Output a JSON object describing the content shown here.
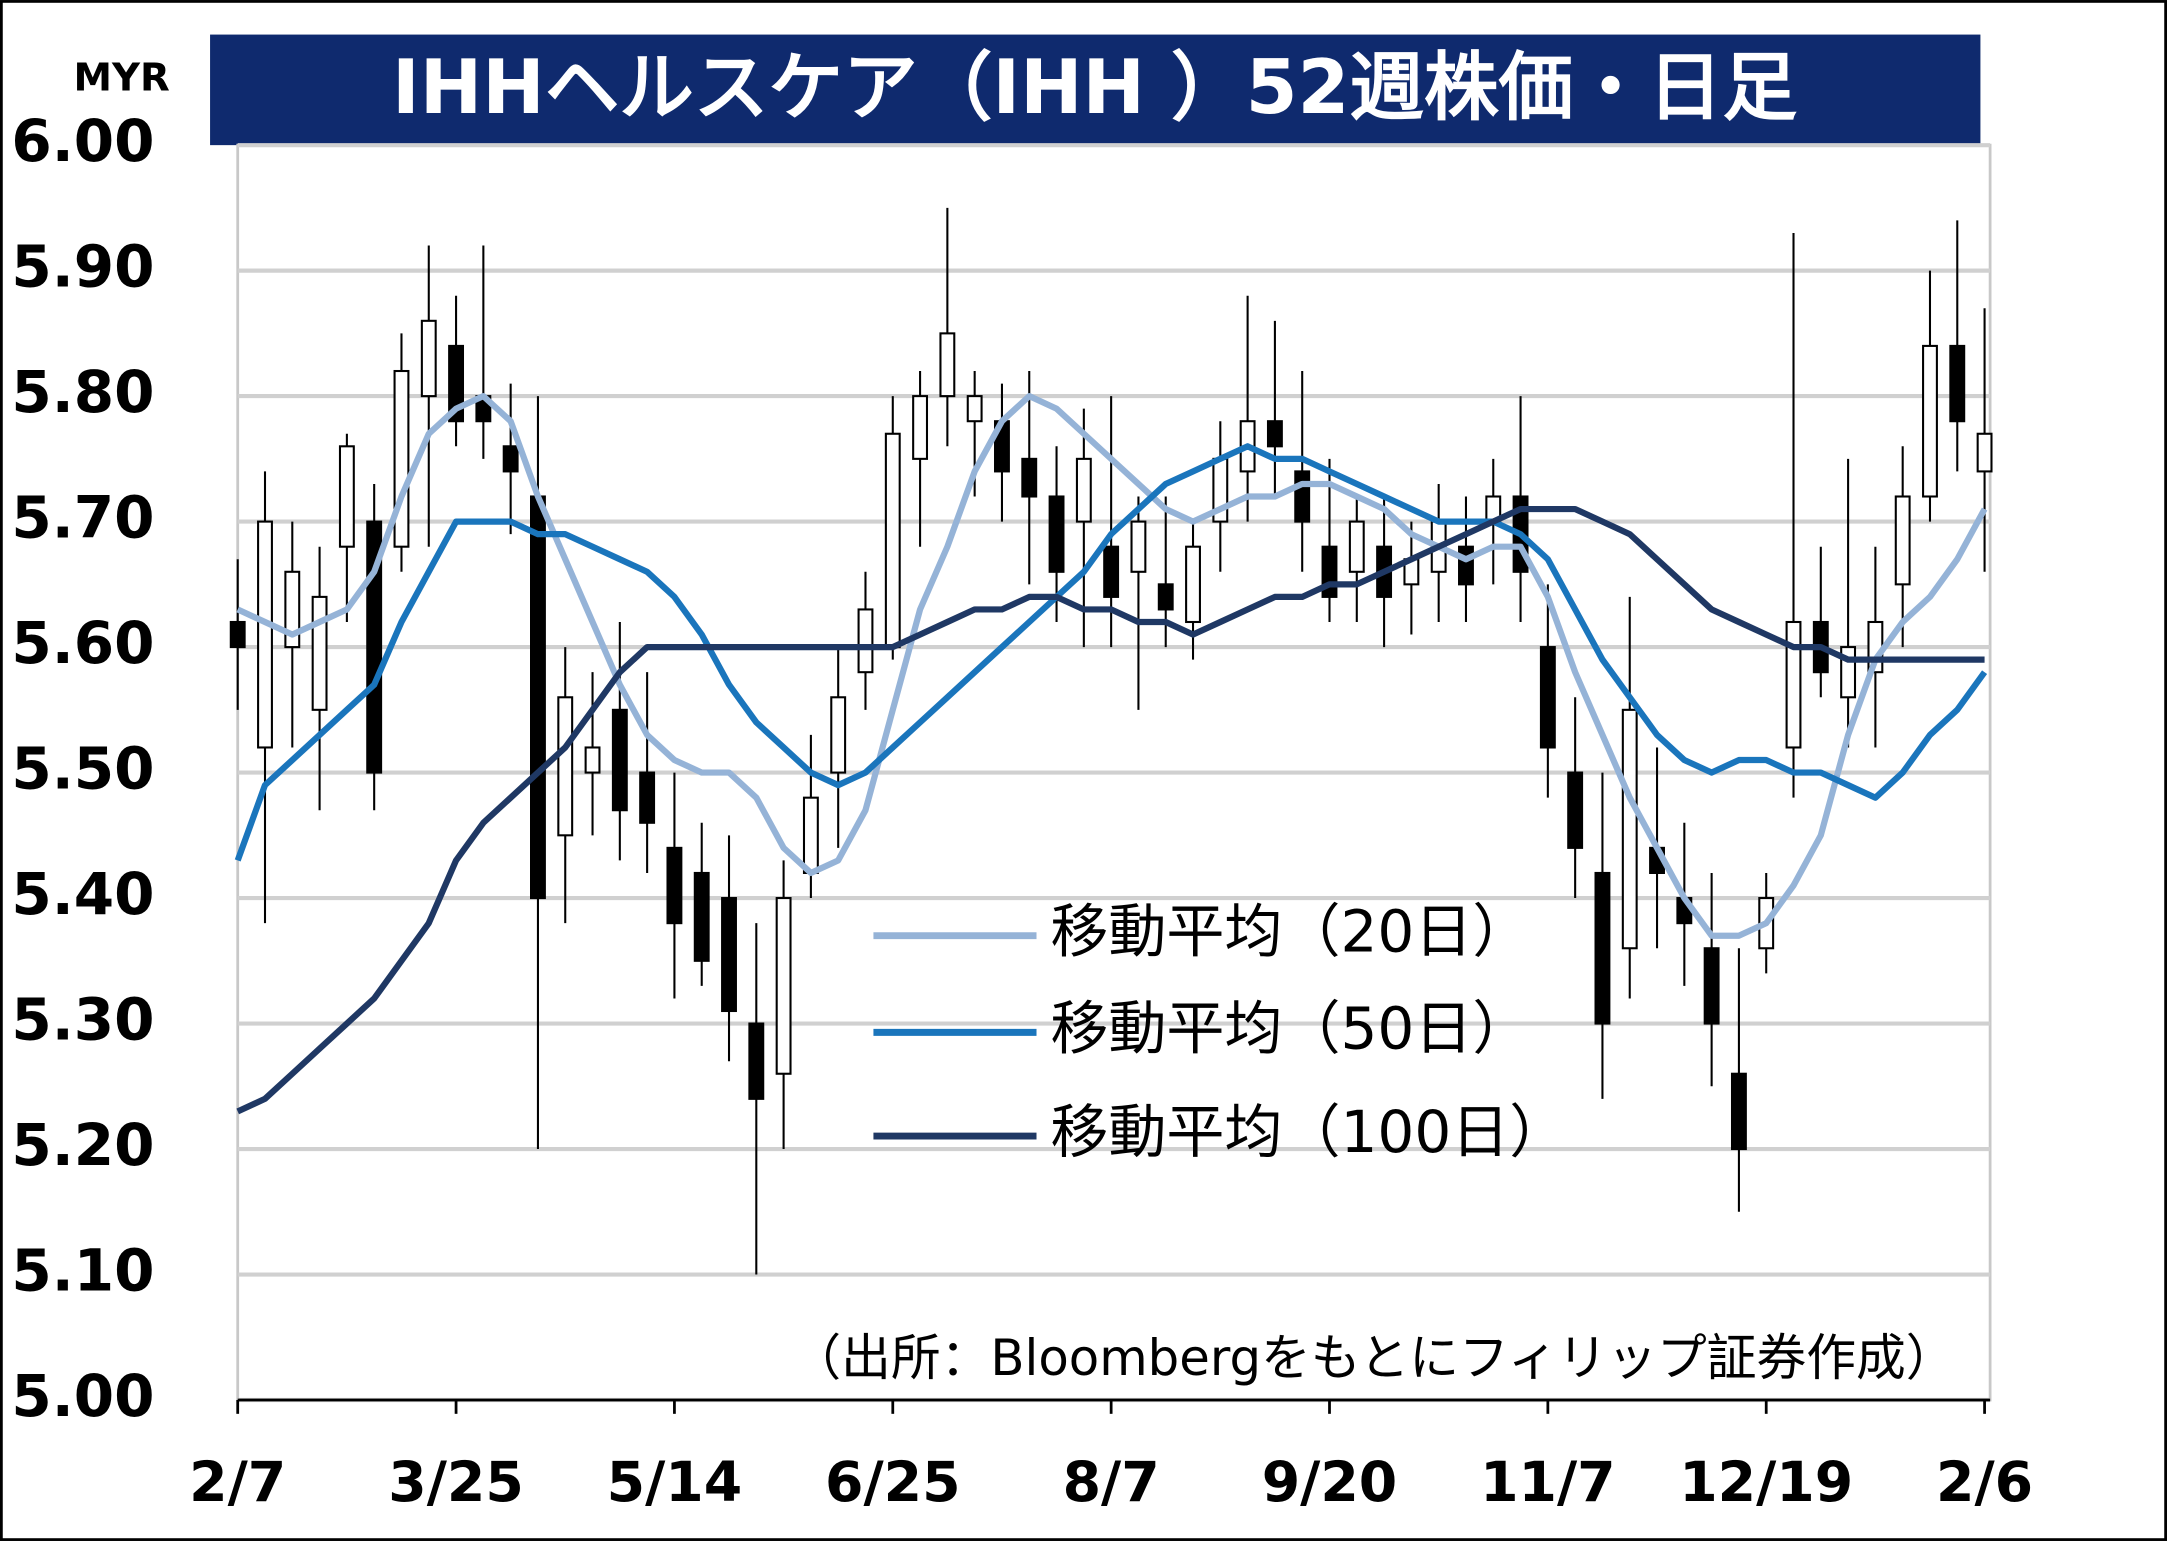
{
  "chart_data": {
    "type": "candlestick",
    "title": "IHHヘルスケア（IHH ）52週株価・日足",
    "y_unit": "MYR",
    "source": "（出所：Bloombergをもとにフィリップ証券作成）",
    "categories": [
      "2/7",
      null,
      null,
      null,
      null,
      null,
      null,
      null,
      "3/25",
      null,
      null,
      null,
      null,
      null,
      null,
      null,
      "5/14",
      null,
      null,
      null,
      null,
      null,
      null,
      null,
      "6/25",
      null,
      null,
      null,
      null,
      null,
      null,
      null,
      "8/7",
      null,
      null,
      null,
      null,
      null,
      null,
      null,
      "9/20",
      null,
      null,
      null,
      null,
      null,
      null,
      null,
      "11/7",
      null,
      null,
      null,
      null,
      null,
      null,
      null,
      "12/19",
      null,
      null,
      null,
      null,
      null,
      null,
      null,
      "2/6"
    ],
    "open": [
      5.62,
      5.52,
      5.6,
      5.55,
      5.68,
      5.7,
      5.68,
      5.8,
      5.84,
      5.8,
      5.76,
      5.72,
      5.45,
      5.5,
      5.55,
      5.5,
      5.44,
      5.42,
      5.4,
      5.3,
      5.26,
      5.42,
      5.5,
      5.58,
      5.6,
      5.75,
      5.8,
      5.78,
      5.78,
      5.75,
      5.72,
      5.7,
      5.68,
      5.66,
      5.65,
      5.62,
      5.7,
      5.74,
      5.78,
      5.74,
      5.68,
      5.66,
      5.68,
      5.65,
      5.66,
      5.68,
      5.7,
      5.72,
      5.6,
      5.5,
      5.42,
      5.36,
      5.44,
      5.4,
      5.36,
      5.26,
      5.36,
      5.52,
      5.62,
      5.56,
      5.58,
      5.65,
      5.72,
      5.84,
      5.74
    ],
    "high": [
      5.67,
      5.74,
      5.7,
      5.68,
      5.77,
      5.73,
      5.85,
      5.92,
      5.88,
      5.92,
      5.81,
      5.8,
      5.6,
      5.58,
      5.62,
      5.58,
      5.5,
      5.46,
      5.45,
      5.38,
      5.43,
      5.53,
      5.6,
      5.66,
      5.8,
      5.82,
      5.95,
      5.82,
      5.81,
      5.82,
      5.76,
      5.79,
      5.8,
      5.72,
      5.72,
      5.7,
      5.78,
      5.88,
      5.86,
      5.82,
      5.75,
      5.72,
      5.72,
      5.7,
      5.73,
      5.72,
      5.75,
      5.8,
      5.65,
      5.56,
      5.5,
      5.64,
      5.52,
      5.46,
      5.42,
      5.36,
      5.42,
      5.93,
      5.68,
      5.75,
      5.68,
      5.76,
      5.9,
      5.94,
      5.87
    ],
    "low": [
      5.55,
      5.38,
      5.52,
      5.47,
      5.62,
      5.47,
      5.66,
      5.68,
      5.76,
      5.75,
      5.69,
      5.2,
      5.38,
      5.45,
      5.43,
      5.42,
      5.32,
      5.33,
      5.27,
      5.1,
      5.2,
      5.4,
      5.44,
      5.55,
      5.59,
      5.68,
      5.76,
      5.72,
      5.7,
      5.65,
      5.62,
      5.6,
      5.6,
      5.55,
      5.6,
      5.59,
      5.66,
      5.7,
      5.72,
      5.66,
      5.62,
      5.62,
      5.6,
      5.61,
      5.62,
      5.62,
      5.65,
      5.62,
      5.48,
      5.4,
      5.24,
      5.32,
      5.36,
      5.33,
      5.25,
      5.15,
      5.34,
      5.48,
      5.56,
      5.52,
      5.52,
      5.6,
      5.7,
      5.74,
      5.66
    ],
    "close": [
      5.6,
      5.7,
      5.66,
      5.64,
      5.76,
      5.5,
      5.82,
      5.86,
      5.78,
      5.78,
      5.74,
      5.4,
      5.56,
      5.52,
      5.47,
      5.46,
      5.38,
      5.35,
      5.31,
      5.24,
      5.4,
      5.48,
      5.56,
      5.63,
      5.77,
      5.8,
      5.85,
      5.8,
      5.74,
      5.72,
      5.66,
      5.75,
      5.64,
      5.7,
      5.63,
      5.68,
      5.75,
      5.78,
      5.76,
      5.7,
      5.64,
      5.7,
      5.64,
      5.67,
      5.7,
      5.65,
      5.72,
      5.66,
      5.52,
      5.44,
      5.3,
      5.55,
      5.42,
      5.38,
      5.3,
      5.2,
      5.4,
      5.62,
      5.58,
      5.6,
      5.62,
      5.72,
      5.84,
      5.78,
      5.77
    ],
    "series": [
      {
        "name": "移動平均（20日）",
        "color": "#95b3d7",
        "values": [
          5.63,
          5.62,
          5.61,
          5.62,
          5.63,
          5.66,
          5.72,
          5.77,
          5.79,
          5.8,
          5.78,
          5.72,
          5.67,
          5.62,
          5.57,
          5.53,
          5.51,
          5.5,
          5.5,
          5.48,
          5.44,
          5.42,
          5.43,
          5.47,
          5.55,
          5.63,
          5.68,
          5.74,
          5.78,
          5.8,
          5.79,
          5.77,
          5.75,
          5.73,
          5.71,
          5.7,
          5.71,
          5.72,
          5.72,
          5.73,
          5.73,
          5.72,
          5.71,
          5.69,
          5.68,
          5.67,
          5.68,
          5.68,
          5.64,
          5.58,
          5.53,
          5.48,
          5.44,
          5.4,
          5.37,
          5.37,
          5.38,
          5.41,
          5.45,
          5.53,
          5.59,
          5.62,
          5.64,
          5.67,
          5.71
        ]
      },
      {
        "name": "移動平均（50日）",
        "color": "#1a75bc",
        "values": [
          5.43,
          5.49,
          5.51,
          5.53,
          5.55,
          5.57,
          5.62,
          5.66,
          5.7,
          5.7,
          5.7,
          5.69,
          5.69,
          5.68,
          5.67,
          5.66,
          5.64,
          5.61,
          5.57,
          5.54,
          5.52,
          5.5,
          5.49,
          5.5,
          5.52,
          5.54,
          5.56,
          5.58,
          5.6,
          5.62,
          5.64,
          5.66,
          5.69,
          5.71,
          5.73,
          5.74,
          5.75,
          5.76,
          5.75,
          5.75,
          5.74,
          5.73,
          5.72,
          5.71,
          5.7,
          5.7,
          5.7,
          5.69,
          5.67,
          5.63,
          5.59,
          5.56,
          5.53,
          5.51,
          5.5,
          5.51,
          5.51,
          5.5,
          5.5,
          5.49,
          5.48,
          5.5,
          5.53,
          5.55,
          5.58
        ]
      },
      {
        "name": "移動平均（100日）",
        "color": "#1f3864",
        "values": [
          5.23,
          5.24,
          5.26,
          5.28,
          5.3,
          5.32,
          5.35,
          5.38,
          5.43,
          5.46,
          5.48,
          5.5,
          5.52,
          5.55,
          5.58,
          5.6,
          5.6,
          5.6,
          5.6,
          5.6,
          5.6,
          5.6,
          5.6,
          5.6,
          5.6,
          5.61,
          5.62,
          5.63,
          5.63,
          5.64,
          5.64,
          5.63,
          5.63,
          5.62,
          5.62,
          5.61,
          5.62,
          5.63,
          5.64,
          5.64,
          5.65,
          5.65,
          5.66,
          5.67,
          5.68,
          5.69,
          5.7,
          5.71,
          5.71,
          5.71,
          5.7,
          5.69,
          5.67,
          5.65,
          5.63,
          5.62,
          5.61,
          5.6,
          5.6,
          5.59,
          5.59,
          5.59,
          5.59,
          5.59,
          5.59
        ]
      }
    ],
    "ylim": [
      5,
      6
    ],
    "yticks": [
      {
        "value": 5,
        "label": "5.00"
      },
      {
        "value": 5.1,
        "label": "5.10"
      },
      {
        "value": 5.2,
        "label": "5.20"
      },
      {
        "value": 5.3,
        "label": "5.30"
      },
      {
        "value": 5.4,
        "label": "5.40"
      },
      {
        "value": 5.5,
        "label": "5.50"
      },
      {
        "value": 5.6,
        "label": "5.60"
      },
      {
        "value": 5.7,
        "label": "5.70"
      },
      {
        "value": 5.8,
        "label": "5.80"
      },
      {
        "value": 5.9,
        "label": "5.90"
      },
      {
        "value": 6,
        "label": "6.00"
      }
    ],
    "grid": true
  }
}
